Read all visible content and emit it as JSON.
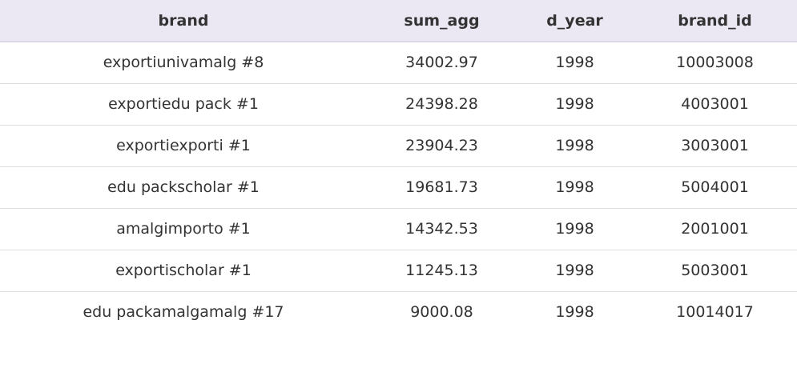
{
  "table": {
    "columns": [
      "brand",
      "sum_agg",
      "d_year",
      "brand_id"
    ],
    "rows": [
      [
        "exportiunivamalg #8",
        "34002.97",
        "1998",
        "10003008"
      ],
      [
        "exportiedu pack #1",
        "24398.28",
        "1998",
        "4003001"
      ],
      [
        "exportiexporti #1",
        "23904.23",
        "1998",
        "3003001"
      ],
      [
        "edu packscholar #1",
        "19681.73",
        "1998",
        "5004001"
      ],
      [
        "amalgimporto #1",
        "14342.53",
        "1998",
        "2001001"
      ],
      [
        "exportischolar #1",
        "11245.13",
        "1998",
        "5003001"
      ],
      [
        "edu packamalgamalg #17",
        "9000.08",
        "1998",
        "10014017"
      ]
    ]
  },
  "colors": {
    "header_bg": "#ece8f3",
    "row_border": "#dddddd",
    "text": "#333333"
  }
}
